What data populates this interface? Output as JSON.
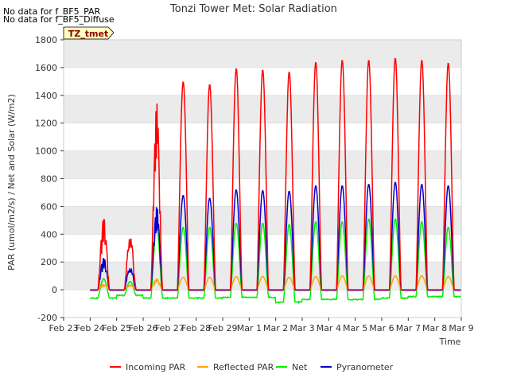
{
  "notes": [
    "No data for f_BF5_PAR",
    "No data for f_BF5_Diffuse"
  ],
  "site_label": "TZ_tmet",
  "chart_data": {
    "type": "line",
    "title": "Tonzi Tower Met: Solar Radiation",
    "xlabel": "Time",
    "ylabel": "PAR (umol/m2/s) / Net and Solar (W/m2)",
    "ylim": [
      -200,
      1800
    ],
    "yticks": [
      -200,
      0,
      200,
      400,
      600,
      800,
      1000,
      1200,
      1400,
      1600,
      1800
    ],
    "xlim_days": [
      0,
      15
    ],
    "xtick_labels": [
      "Feb 23",
      "Feb 24",
      "Feb 25",
      "Feb 26",
      "Feb 27",
      "Feb 28",
      "Feb 29",
      "Mar 1",
      "Mar 2",
      "Mar 3",
      "Mar 4",
      "Mar 5",
      "Mar 6",
      "Mar 7",
      "Mar 8",
      "Mar 9"
    ],
    "colors": {
      "incoming_par": "#ff0000",
      "reflected_par": "#ffa500",
      "net": "#00ee00",
      "pyranometer": "#0000cc",
      "band": "#ebebeb"
    },
    "legend": {
      "position": "bottom-center"
    },
    "daily_peaks": {
      "day_start_index": 1,
      "incoming_par": [
        560,
        460,
        1360,
        1500,
        1480,
        1595,
        1585,
        1570,
        1640,
        1655,
        1655,
        1670,
        1655,
        1635
      ],
      "reflected_par": [
        40,
        40,
        80,
        90,
        90,
        95,
        95,
        90,
        95,
        100,
        100,
        100,
        100,
        95
      ],
      "net": [
        80,
        60,
        450,
        450,
        450,
        480,
        480,
        470,
        490,
        490,
        510,
        510,
        490,
        450
      ],
      "pyranometer": [
        250,
        190,
        610,
        680,
        660,
        720,
        715,
        710,
        750,
        750,
        760,
        775,
        760,
        750
      ],
      "net_night": [
        -60,
        -40,
        -60,
        -60,
        -60,
        -55,
        -55,
        -90,
        -70,
        -70,
        -70,
        -60,
        -50,
        -50
      ]
    },
    "series": [
      {
        "name": "Incoming PAR",
        "key": "incoming_par"
      },
      {
        "name": "Reflected PAR",
        "key": "reflected_par"
      },
      {
        "name": "Net",
        "key": "net"
      },
      {
        "name": "Pyranometer",
        "key": "pyranometer"
      }
    ]
  }
}
